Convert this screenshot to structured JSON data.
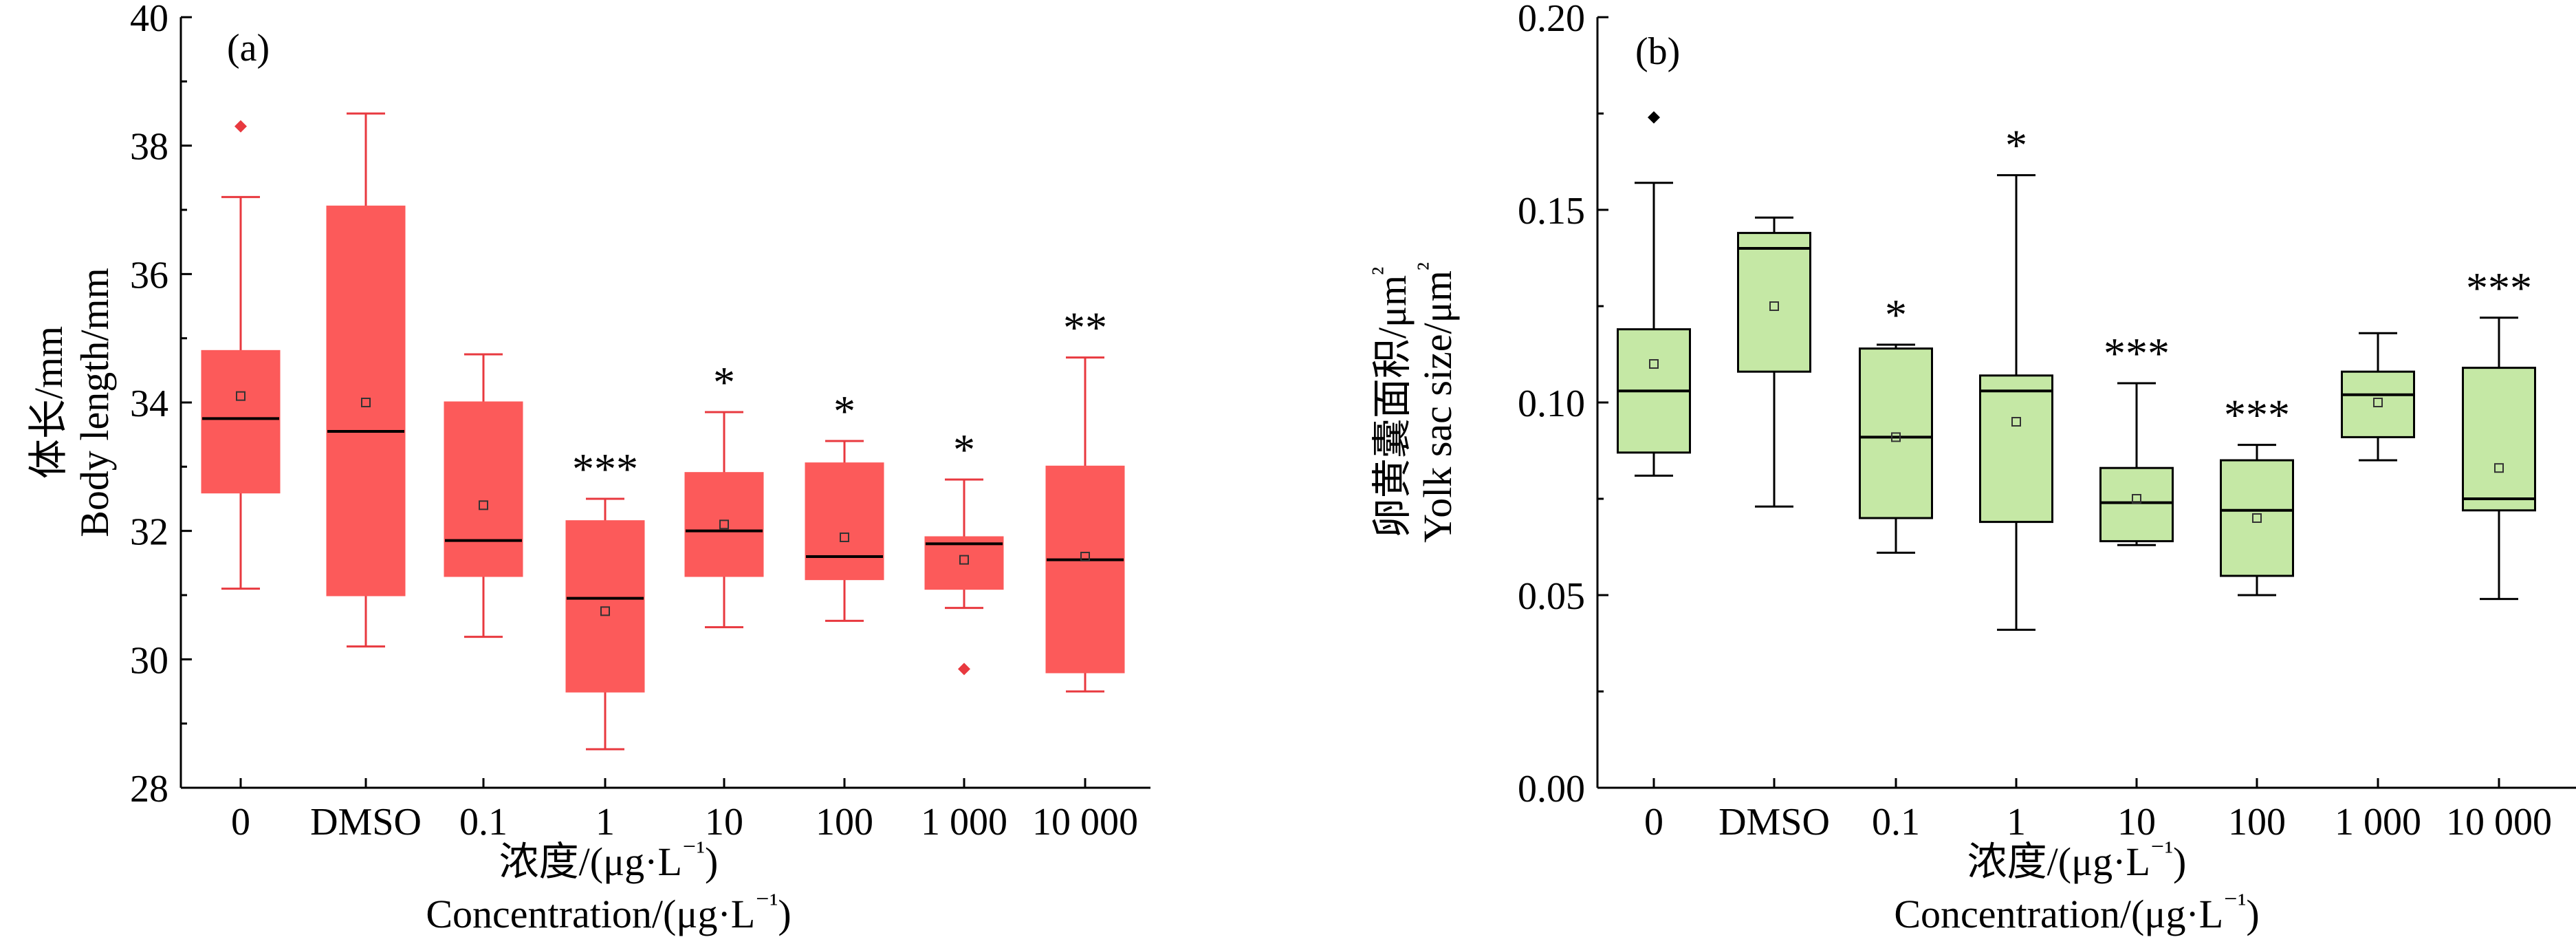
{
  "chart_data": [
    {
      "type": "box",
      "panel_label": "(a)",
      "categories": [
        "0",
        "DMSO",
        "0.1",
        "1",
        "10",
        "100",
        "1 000",
        "10 000"
      ],
      "ylabel": [
        "体长/mm",
        "Body length/mm"
      ],
      "xlabel": [
        "浓度/(μg·L",
        "⁻¹",
        ")",
        "Concentration/(μg·L",
        "⁻¹",
        ")"
      ],
      "ylim": [
        28,
        40
      ],
      "yticks": [
        28,
        30,
        32,
        34,
        36,
        38,
        40
      ],
      "box_color": "#fc5a5a",
      "line_color": "#e8393f",
      "boxes": [
        {
          "q1": 32.6,
          "median": 33.75,
          "q3": 34.8,
          "whisker_low": 31.1,
          "whisker_high": 37.2,
          "mean": 34.1,
          "outliers": [
            38.3
          ],
          "sig": ""
        },
        {
          "q1": 31.0,
          "median": 33.55,
          "q3": 37.05,
          "whisker_low": 30.2,
          "whisker_high": 38.5,
          "mean": 34.0,
          "outliers": [],
          "sig": ""
        },
        {
          "q1": 31.3,
          "median": 31.85,
          "q3": 34.0,
          "whisker_low": 30.35,
          "whisker_high": 34.75,
          "mean": 32.4,
          "outliers": [],
          "sig": ""
        },
        {
          "q1": 29.5,
          "median": 30.95,
          "q3": 32.15,
          "whisker_low": 28.6,
          "whisker_high": 32.5,
          "mean": 30.75,
          "outliers": [],
          "sig": "***"
        },
        {
          "q1": 31.3,
          "median": 32.0,
          "q3": 32.9,
          "whisker_low": 30.5,
          "whisker_high": 33.85,
          "mean": 32.1,
          "outliers": [],
          "sig": "*"
        },
        {
          "q1": 31.25,
          "median": 31.6,
          "q3": 33.05,
          "whisker_low": 30.6,
          "whisker_high": 33.4,
          "mean": 31.9,
          "outliers": [],
          "sig": "*"
        },
        {
          "q1": 31.1,
          "median": 31.8,
          "q3": 31.9,
          "whisker_low": 30.8,
          "whisker_high": 32.8,
          "mean": 31.55,
          "outliers": [
            29.85
          ],
          "sig": "*"
        },
        {
          "q1": 29.8,
          "median": 31.55,
          "q3": 33.0,
          "whisker_low": 29.5,
          "whisker_high": 34.7,
          "mean": 31.6,
          "outliers": [],
          "sig": "**"
        }
      ]
    },
    {
      "type": "box",
      "panel_label": "(b)",
      "categories": [
        "0",
        "DMSO",
        "0.1",
        "1",
        "10",
        "100",
        "1 000",
        "10 000"
      ],
      "ylabel": [
        "卵黄囊面积/μm",
        "²",
        "Yolk sac size/μm",
        "²"
      ],
      "xlabel": [
        "浓度/(μg·L",
        "⁻¹",
        ")",
        "Concentration/(μg·L",
        "⁻¹",
        ")"
      ],
      "ylim": [
        0.0,
        0.2
      ],
      "yticks": [
        "0.00",
        "0.05",
        "0.10",
        "0.15",
        "0.20"
      ],
      "box_color": "#c5e8a5",
      "line_color": "#000000",
      "boxes": [
        {
          "q1": 0.087,
          "median": 0.103,
          "q3": 0.119,
          "whisker_low": 0.081,
          "whisker_high": 0.157,
          "mean": 0.11,
          "outliers": [
            0.174
          ],
          "sig": ""
        },
        {
          "q1": 0.108,
          "median": 0.14,
          "q3": 0.144,
          "whisker_low": 0.073,
          "whisker_high": 0.148,
          "mean": 0.125,
          "outliers": [],
          "sig": ""
        },
        {
          "q1": 0.07,
          "median": 0.091,
          "q3": 0.114,
          "whisker_low": 0.061,
          "whisker_high": 0.115,
          "mean": 0.091,
          "outliers": [],
          "sig": "*"
        },
        {
          "q1": 0.069,
          "median": 0.103,
          "q3": 0.107,
          "whisker_low": 0.041,
          "whisker_high": 0.159,
          "mean": 0.095,
          "outliers": [],
          "sig": "*"
        },
        {
          "q1": 0.064,
          "median": 0.074,
          "q3": 0.083,
          "whisker_low": 0.063,
          "whisker_high": 0.105,
          "mean": 0.075,
          "outliers": [],
          "sig": "***"
        },
        {
          "q1": 0.055,
          "median": 0.072,
          "q3": 0.085,
          "whisker_low": 0.05,
          "whisker_high": 0.089,
          "mean": 0.07,
          "outliers": [],
          "sig": "***"
        },
        {
          "q1": 0.091,
          "median": 0.102,
          "q3": 0.108,
          "whisker_low": 0.085,
          "whisker_high": 0.118,
          "mean": 0.1,
          "outliers": [],
          "sig": ""
        },
        {
          "q1": 0.072,
          "median": 0.075,
          "q3": 0.109,
          "whisker_low": 0.049,
          "whisker_high": 0.122,
          "mean": 0.083,
          "outliers": [],
          "sig": "***"
        }
      ]
    }
  ]
}
